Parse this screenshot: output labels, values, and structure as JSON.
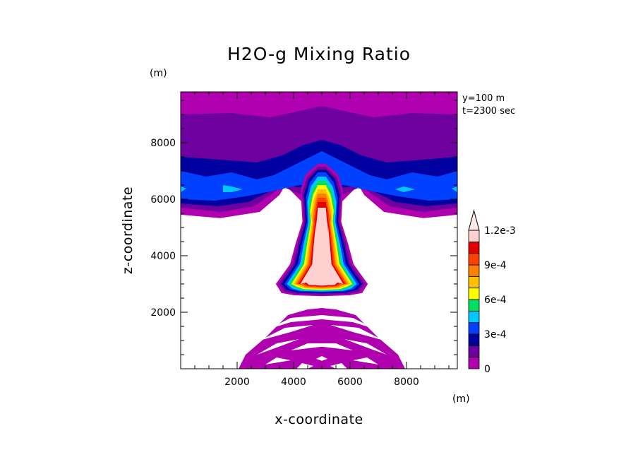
{
  "chart_data": {
    "type": "heatmap",
    "title": "H2O-g Mixing Ratio",
    "xlabel": "x-coordinate",
    "ylabel": "z-coordinate",
    "x_unit": "(m)",
    "y_unit": "(m)",
    "xlim": [
      0,
      9800
    ],
    "ylim": [
      0,
      9800
    ],
    "xticks": [
      2000,
      4000,
      6000,
      8000
    ],
    "yticks": [
      2000,
      4000,
      6000,
      8000
    ],
    "annotations": [
      "y=100 m",
      "t=2300 sec"
    ],
    "colorbar": {
      "levels": [
        0,
        0.0001,
        0.0002,
        0.0003,
        0.0004,
        0.0005,
        0.0006,
        0.0007,
        0.0008,
        0.0009,
        0.001,
        0.0011,
        0.0012
      ],
      "labeled_ticks": [
        {
          "value": 0,
          "label": "0"
        },
        {
          "value": 0.0003,
          "label": "3e-4"
        },
        {
          "value": 0.0006,
          "label": "6e-4"
        },
        {
          "value": 0.0009,
          "label": "9e-4"
        },
        {
          "value": 0.0012,
          "label": "1.2e-3"
        }
      ],
      "colors": [
        "#b000b0",
        "#6e00a0",
        "#0000a0",
        "#0040ff",
        "#00c8ff",
        "#00e060",
        "#ffff00",
        "#ffc000",
        "#ff8000",
        "#ff4000",
        "#e00000",
        "#ffd0d0"
      ],
      "extend": "max"
    },
    "features": [
      {
        "name": "upper-moist-layer",
        "x": [
          0,
          9800
        ],
        "z": [
          5400,
          9800
        ],
        "value_range": [
          0.0001,
          0.0004
        ]
      },
      {
        "name": "plume-core",
        "x_center": 5000,
        "z": [
          2600,
          7000
        ],
        "max_value": 0.0012
      },
      {
        "name": "lower-bands",
        "x": [
          2000,
          7800
        ],
        "z": [
          0,
          2100
        ],
        "value_range": [
          0,
          0.0001
        ]
      }
    ]
  }
}
